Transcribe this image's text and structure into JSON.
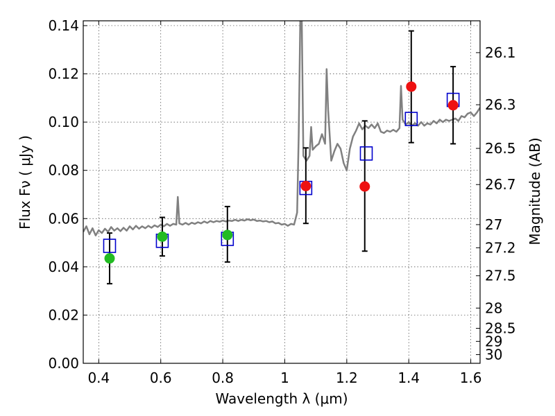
{
  "chart_data": {
    "type": "scatter",
    "xlabel": "Wavelength  λ (μm)",
    "ylabel": "Flux  Fν  ( μJy )",
    "y2label": "Magnitude (AB)",
    "xlim": [
      0.35,
      1.63
    ],
    "ylim": [
      0.0,
      0.142
    ],
    "x_ticks": [
      0.4,
      0.6,
      0.8,
      1.0,
      1.2,
      1.4,
      1.6
    ],
    "x_tick_labels": [
      "0.4",
      "0.6",
      "0.8",
      "1",
      "1.2",
      "1.4",
      "1.6"
    ],
    "y_ticks": [
      0.0,
      0.02,
      0.04,
      0.06,
      0.08,
      0.1,
      0.12,
      0.14
    ],
    "y_tick_labels": [
      "0.00",
      "0.02",
      "0.04",
      "0.06",
      "0.08",
      "0.10",
      "0.12",
      "0.14"
    ],
    "y2_ticks": [
      {
        "label": "26.1",
        "flux": 0.1288
      },
      {
        "label": "26.3",
        "flux": 0.1072
      },
      {
        "label": "26.5",
        "flux": 0.0891
      },
      {
        "label": "26.7",
        "flux": 0.0741
      },
      {
        "label": "27",
        "flux": 0.0575
      },
      {
        "label": "27.2",
        "flux": 0.0479
      },
      {
        "label": "27.5",
        "flux": 0.0363
      },
      {
        "label": "28",
        "flux": 0.0229
      },
      {
        "label": "28.5",
        "flux": 0.0145
      },
      {
        "label": "29",
        "flux": 0.0091
      },
      {
        "label": "30",
        "flux": 0.0036
      }
    ],
    "grid": true,
    "series": [
      {
        "marker": "circle",
        "color": "#22bb22",
        "points": [
          {
            "x": 0.435,
            "y": 0.0435,
            "err_low": 0.033,
            "err_high": 0.054
          },
          {
            "x": 0.605,
            "y": 0.0525,
            "err_low": 0.0445,
            "err_high": 0.0605
          },
          {
            "x": 0.815,
            "y": 0.0532,
            "err_low": 0.042,
            "err_high": 0.065
          }
        ]
      },
      {
        "marker": "circle",
        "color": "#ee1111",
        "points": [
          {
            "x": 1.068,
            "y": 0.0735,
            "err_low": 0.058,
            "err_high": 0.0893
          },
          {
            "x": 1.258,
            "y": 0.0733,
            "err_low": 0.0465,
            "err_high": 0.1005
          },
          {
            "x": 1.408,
            "y": 0.1147,
            "err_low": 0.0915,
            "err_high": 0.1378
          },
          {
            "x": 1.543,
            "y": 0.107,
            "err_low": 0.091,
            "err_high": 0.123
          }
        ]
      },
      {
        "marker": "open-square",
        "color": "#0000cc",
        "points": [
          {
            "x": 0.435,
            "y": 0.0487
          },
          {
            "x": 0.605,
            "y": 0.0508
          },
          {
            "x": 0.815,
            "y": 0.0516
          },
          {
            "x": 1.068,
            "y": 0.0727
          },
          {
            "x": 1.263,
            "y": 0.087
          },
          {
            "x": 1.408,
            "y": 0.1013
          },
          {
            "x": 1.543,
            "y": 0.1092
          }
        ]
      },
      {
        "type": "line",
        "color": "#808080",
        "points": [
          [
            0.35,
            0.0545
          ],
          [
            0.36,
            0.0568
          ],
          [
            0.37,
            0.0535
          ],
          [
            0.38,
            0.056
          ],
          [
            0.39,
            0.053
          ],
          [
            0.4,
            0.0552
          ],
          [
            0.41,
            0.054
          ],
          [
            0.42,
            0.0558
          ],
          [
            0.43,
            0.0545
          ],
          [
            0.44,
            0.0565
          ],
          [
            0.45,
            0.055
          ],
          [
            0.46,
            0.056
          ],
          [
            0.47,
            0.0548
          ],
          [
            0.48,
            0.0562
          ],
          [
            0.49,
            0.055
          ],
          [
            0.5,
            0.0568
          ],
          [
            0.51,
            0.0555
          ],
          [
            0.52,
            0.057
          ],
          [
            0.53,
            0.0558
          ],
          [
            0.54,
            0.0568
          ],
          [
            0.55,
            0.056
          ],
          [
            0.56,
            0.057
          ],
          [
            0.57,
            0.0562
          ],
          [
            0.58,
            0.0572
          ],
          [
            0.59,
            0.0565
          ],
          [
            0.6,
            0.0575
          ],
          [
            0.61,
            0.0568
          ],
          [
            0.62,
            0.0578
          ],
          [
            0.63,
            0.057
          ],
          [
            0.64,
            0.0578
          ],
          [
            0.65,
            0.0575
          ],
          [
            0.655,
            0.069
          ],
          [
            0.66,
            0.058
          ],
          [
            0.67,
            0.0575
          ],
          [
            0.68,
            0.0582
          ],
          [
            0.69,
            0.0575
          ],
          [
            0.7,
            0.0583
          ],
          [
            0.71,
            0.0578
          ],
          [
            0.72,
            0.0585
          ],
          [
            0.73,
            0.058
          ],
          [
            0.74,
            0.0588
          ],
          [
            0.75,
            0.0582
          ],
          [
            0.76,
            0.059
          ],
          [
            0.77,
            0.0585
          ],
          [
            0.78,
            0.059
          ],
          [
            0.79,
            0.0587
          ],
          [
            0.8,
            0.0592
          ],
          [
            0.81,
            0.0588
          ],
          [
            0.82,
            0.0592
          ],
          [
            0.83,
            0.059
          ],
          [
            0.84,
            0.0595
          ],
          [
            0.85,
            0.059
          ],
          [
            0.86,
            0.0595
          ],
          [
            0.87,
            0.0592
          ],
          [
            0.88,
            0.0597
          ],
          [
            0.89,
            0.0593
          ],
          [
            0.9,
            0.0596
          ],
          [
            0.91,
            0.059
          ],
          [
            0.92,
            0.0592
          ],
          [
            0.93,
            0.0588
          ],
          [
            0.94,
            0.059
          ],
          [
            0.95,
            0.0585
          ],
          [
            0.96,
            0.0588
          ],
          [
            0.97,
            0.058
          ],
          [
            0.98,
            0.0582
          ],
          [
            0.99,
            0.0575
          ],
          [
            1.0,
            0.0578
          ],
          [
            1.01,
            0.057
          ],
          [
            1.02,
            0.0578
          ],
          [
            1.03,
            0.0575
          ],
          [
            1.04,
            0.0625
          ],
          [
            1.045,
            0.095
          ],
          [
            1.05,
            0.142
          ],
          [
            1.055,
            0.142
          ],
          [
            1.06,
            0.086
          ],
          [
            1.07,
            0.084
          ],
          [
            1.08,
            0.086
          ],
          [
            1.085,
            0.098
          ],
          [
            1.09,
            0.0885
          ],
          [
            1.1,
            0.09
          ],
          [
            1.11,
            0.091
          ],
          [
            1.12,
            0.095
          ],
          [
            1.13,
            0.091
          ],
          [
            1.135,
            0.122
          ],
          [
            1.14,
            0.105
          ],
          [
            1.15,
            0.084
          ],
          [
            1.16,
            0.088
          ],
          [
            1.17,
            0.091
          ],
          [
            1.18,
            0.089
          ],
          [
            1.19,
            0.083
          ],
          [
            1.2,
            0.08
          ],
          [
            1.21,
            0.089
          ],
          [
            1.22,
            0.094
          ],
          [
            1.23,
            0.0965
          ],
          [
            1.24,
            0.0995
          ],
          [
            1.25,
            0.097
          ],
          [
            1.26,
            0.0985
          ],
          [
            1.27,
            0.0975
          ],
          [
            1.28,
            0.099
          ],
          [
            1.29,
            0.0975
          ],
          [
            1.3,
            0.0995
          ],
          [
            1.31,
            0.096
          ],
          [
            1.32,
            0.0955
          ],
          [
            1.33,
            0.0965
          ],
          [
            1.34,
            0.096
          ],
          [
            1.35,
            0.0968
          ],
          [
            1.36,
            0.096
          ],
          [
            1.37,
            0.0975
          ],
          [
            1.375,
            0.115
          ],
          [
            1.38,
            0.101
          ],
          [
            1.39,
            0.099
          ],
          [
            1.4,
            0.1
          ],
          [
            1.41,
            0.0985
          ],
          [
            1.42,
            0.0995
          ],
          [
            1.43,
            0.0985
          ],
          [
            1.44,
            0.1
          ],
          [
            1.45,
            0.0985
          ],
          [
            1.46,
            0.0995
          ],
          [
            1.47,
            0.099
          ],
          [
            1.48,
            0.1005
          ],
          [
            1.49,
            0.0995
          ],
          [
            1.5,
            0.101
          ],
          [
            1.51,
            0.1
          ],
          [
            1.52,
            0.101
          ],
          [
            1.53,
            0.1005
          ],
          [
            1.54,
            0.101
          ],
          [
            1.55,
            0.1015
          ],
          [
            1.56,
            0.1005
          ],
          [
            1.57,
            0.1025
          ],
          [
            1.58,
            0.102
          ],
          [
            1.59,
            0.1035
          ],
          [
            1.6,
            0.104
          ],
          [
            1.61,
            0.1025
          ],
          [
            1.62,
            0.104
          ],
          [
            1.63,
            0.106
          ]
        ]
      }
    ]
  }
}
